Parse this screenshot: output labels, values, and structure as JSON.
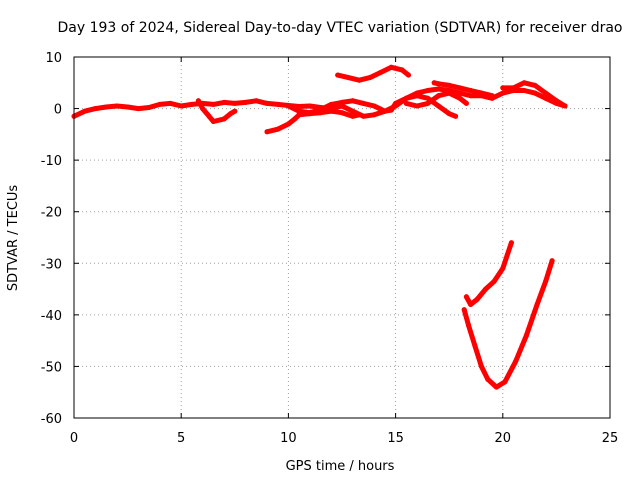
{
  "chart_data": {
    "type": "scatter",
    "title": "Day 193 of 2024, Sidereal Day-to-day VTEC variation (SDTVAR) for receiver drao",
    "xlabel": "GPS time / hours",
    "ylabel": "SDTVAR / TECUs",
    "xlim": [
      0,
      25
    ],
    "ylim": [
      -60,
      10
    ],
    "xticks": [
      0,
      5,
      10,
      15,
      20,
      25
    ],
    "yticks": [
      10,
      0,
      -10,
      -20,
      -30,
      -40,
      -50,
      -60
    ],
    "grid": true,
    "series_color": "#ff0000",
    "series": [
      {
        "name": "track-1",
        "points": [
          [
            0,
            -1.5
          ],
          [
            0.5,
            -0.5
          ],
          [
            1,
            0
          ],
          [
            1.5,
            0.3
          ],
          [
            2,
            0.5
          ],
          [
            2.5,
            0.3
          ],
          [
            3,
            0
          ],
          [
            3.5,
            0.2
          ],
          [
            4,
            0.8
          ],
          [
            4.5,
            1.0
          ],
          [
            5,
            0.5
          ],
          [
            5.5,
            0.8
          ],
          [
            6,
            1.0
          ],
          [
            6.5,
            0.8
          ],
          [
            7,
            1.2
          ],
          [
            7.5,
            1.0
          ],
          [
            8,
            1.2
          ],
          [
            8.5,
            1.5
          ],
          [
            9,
            1.0
          ],
          [
            9.5,
            0.8
          ],
          [
            10,
            0.6
          ],
          [
            10.5,
            0.4
          ],
          [
            11,
            0.5
          ],
          [
            11.5,
            0.2
          ],
          [
            12,
            0
          ],
          [
            12.5,
            0.5
          ],
          [
            13,
            -0.5
          ],
          [
            13.5,
            -1.5
          ],
          [
            14,
            -1.2
          ],
          [
            14.5,
            -0.5
          ],
          [
            15,
            0.5
          ],
          [
            15.5,
            2.0
          ],
          [
            16,
            3.0
          ],
          [
            16.5,
            3.5
          ],
          [
            17,
            3.8
          ],
          [
            17.5,
            3.5
          ],
          [
            18,
            3.0
          ],
          [
            18.5,
            2.5
          ],
          [
            19,
            2.5
          ],
          [
            19.5,
            2.0
          ],
          [
            20,
            3.0
          ],
          [
            20.5,
            3.5
          ],
          [
            21,
            3.5
          ],
          [
            21.5,
            3.0
          ],
          [
            22,
            2.0
          ],
          [
            22.5,
            1.0
          ],
          [
            22.9,
            0.5
          ]
        ]
      },
      {
        "name": "track-2",
        "points": [
          [
            5.8,
            1.5
          ],
          [
            6,
            0
          ],
          [
            6.3,
            -1.5
          ],
          [
            6.5,
            -2.5
          ],
          [
            7,
            -2.0
          ],
          [
            7.3,
            -1.0
          ],
          [
            7.5,
            -0.5
          ]
        ]
      },
      {
        "name": "track-3",
        "points": [
          [
            9,
            -4.5
          ],
          [
            9.5,
            -4.0
          ],
          [
            10,
            -3.0
          ],
          [
            10.3,
            -2.0
          ],
          [
            10.5,
            -1.2
          ],
          [
            11,
            -1.0
          ],
          [
            11.5,
            -0.8
          ],
          [
            12,
            -0.5
          ],
          [
            12.5,
            -0.8
          ],
          [
            13,
            -1.5
          ],
          [
            13.3,
            -1.2
          ]
        ]
      },
      {
        "name": "track-4",
        "points": [
          [
            10,
            0.5
          ],
          [
            10.5,
            -0.5
          ],
          [
            11,
            -0.8
          ],
          [
            11.5,
            -0.2
          ],
          [
            12,
            0.8
          ],
          [
            12.5,
            1.2
          ],
          [
            13,
            1.5
          ],
          [
            13.5,
            1.0
          ],
          [
            14,
            0.5
          ],
          [
            14.5,
            -0.5
          ],
          [
            14.8,
            -0.3
          ],
          [
            15,
            1.0
          ],
          [
            15.5,
            2.0
          ],
          [
            16,
            2.5
          ],
          [
            16.5,
            2.0
          ],
          [
            17,
            0.5
          ],
          [
            17.5,
            -1.0
          ],
          [
            17.8,
            -1.5
          ]
        ]
      },
      {
        "name": "track-5",
        "points": [
          [
            12.3,
            6.5
          ],
          [
            12.8,
            6.0
          ],
          [
            13.3,
            5.5
          ],
          [
            13.8,
            6.0
          ],
          [
            14.3,
            7.0
          ],
          [
            14.8,
            8.0
          ],
          [
            15.3,
            7.5
          ],
          [
            15.6,
            6.5
          ]
        ]
      },
      {
        "name": "track-6",
        "points": [
          [
            16.8,
            5.0
          ],
          [
            17,
            4.8
          ],
          [
            17.5,
            4.5
          ],
          [
            18,
            4.0
          ],
          [
            18.5,
            3.5
          ],
          [
            19,
            3.0
          ],
          [
            19.5,
            2.5
          ]
        ]
      },
      {
        "name": "track-7",
        "points": [
          [
            15.5,
            1.0
          ],
          [
            16,
            0.5
          ],
          [
            16.5,
            1.0
          ],
          [
            17,
            2.5
          ],
          [
            17.5,
            3.0
          ],
          [
            18,
            2.0
          ],
          [
            18.3,
            1.0
          ]
        ]
      },
      {
        "name": "track-8",
        "points": [
          [
            20,
            4.0
          ],
          [
            20.5,
            4.0
          ],
          [
            21,
            5.0
          ],
          [
            21.5,
            4.5
          ],
          [
            22,
            3.0
          ],
          [
            22.5,
            1.5
          ],
          [
            22.9,
            0.5
          ]
        ]
      },
      {
        "name": "track-9",
        "points": [
          [
            18.3,
            -36.5
          ],
          [
            18.5,
            -38.0
          ],
          [
            18.8,
            -37.0
          ],
          [
            19.2,
            -35.0
          ],
          [
            19.6,
            -33.5
          ],
          [
            20.0,
            -31.0
          ],
          [
            20.2,
            -28.5
          ],
          [
            20.4,
            -26.0
          ]
        ]
      },
      {
        "name": "track-10",
        "points": [
          [
            18.2,
            -39.0
          ],
          [
            18.4,
            -42.0
          ],
          [
            18.7,
            -46.0
          ],
          [
            19.0,
            -50.0
          ],
          [
            19.3,
            -52.5
          ],
          [
            19.7,
            -54.0
          ],
          [
            20.1,
            -53.0
          ],
          [
            20.6,
            -49.0
          ],
          [
            21.1,
            -44.0
          ],
          [
            21.6,
            -38.0
          ],
          [
            22.0,
            -33.5
          ],
          [
            22.3,
            -29.5
          ]
        ]
      }
    ]
  }
}
